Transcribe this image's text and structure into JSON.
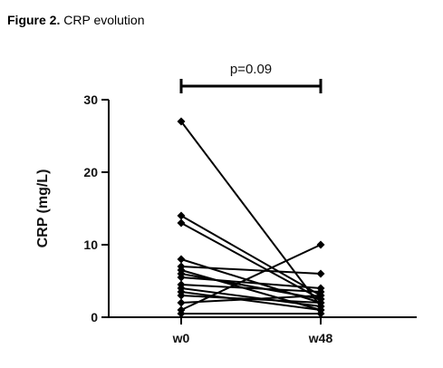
{
  "caption": {
    "label": "Figure 2.",
    "text": " CRP evolution"
  },
  "chart_data": {
    "type": "line",
    "title": "",
    "xlabel": "",
    "ylabel": "CRP (mg/L)",
    "categories": [
      "w0",
      "w48"
    ],
    "ylim": [
      0,
      30
    ],
    "yticks": [
      0,
      10,
      20,
      30
    ],
    "yticklabels": [
      "0",
      "10",
      "20",
      "30"
    ],
    "grid": false,
    "legend": "none",
    "marker": "diamond",
    "color": "#000000",
    "annotation": {
      "text": "p=0.09",
      "from": "w0",
      "to": "w48"
    },
    "pairs": [
      [
        27.0,
        1.5
      ],
      [
        14.0,
        3.0
      ],
      [
        13.0,
        2.5
      ],
      [
        8.0,
        2.0
      ],
      [
        7.0,
        6.0
      ],
      [
        6.5,
        1.0
      ],
      [
        6.0,
        2.5
      ],
      [
        5.5,
        4.0
      ],
      [
        4.5,
        3.5
      ],
      [
        4.0,
        1.5
      ],
      [
        3.5,
        1.0
      ],
      [
        3.0,
        2.0
      ],
      [
        2.0,
        3.0
      ],
      [
        1.0,
        10.0
      ],
      [
        0.5,
        0.5
      ]
    ]
  }
}
